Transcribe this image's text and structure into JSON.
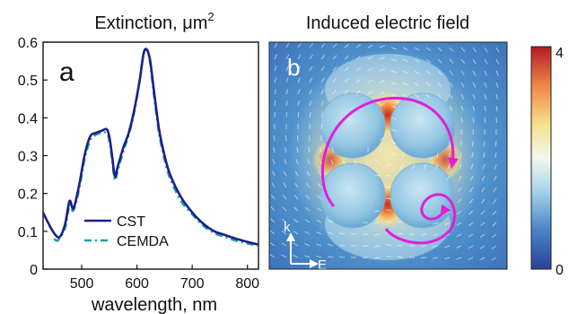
{
  "panel_a": {
    "title": "Extinction, μm",
    "title_sup": "2",
    "label": "a",
    "xlabel": "wavelength, nm",
    "y_ticks": [
      "0",
      "0.1",
      "0.2",
      "0.3",
      "0.4",
      "0.5",
      "0.6"
    ],
    "x_ticks": [
      "500",
      "600",
      "700",
      "800"
    ],
    "legend": [
      "CST",
      "CEMDA"
    ]
  },
  "panel_b": {
    "title": "Induced electric field",
    "label": "b",
    "axis_k": "k",
    "axis_e": "E",
    "colorbar_max": "4",
    "colorbar_min": "0"
  },
  "colors": {
    "cst": "#1b1f8a",
    "cemda": "#1aa3a3",
    "arrow_magenta": "#e020d8",
    "field_arrow": "#8b0d0d"
  },
  "chart_data": [
    {
      "type": "line",
      "title": "Extinction, μm²",
      "xlabel": "wavelength, nm",
      "ylabel": "",
      "xlim": [
        430,
        820
      ],
      "ylim": [
        0,
        0.6
      ],
      "x_ticks": [
        500,
        600,
        700,
        800
      ],
      "y_ticks": [
        0,
        0.1,
        0.2,
        0.3,
        0.4,
        0.5,
        0.6
      ],
      "legend_position": "lower-center",
      "series": [
        {
          "name": "CST",
          "x": [
            430,
            440,
            450,
            460,
            470,
            478,
            485,
            495,
            505,
            515,
            525,
            535,
            545,
            550,
            555,
            560,
            565,
            575,
            585,
            595,
            605,
            612,
            618,
            624,
            630,
            640,
            650,
            660,
            680,
            700,
            720,
            740,
            760,
            780,
            800,
            820
          ],
          "y": [
            0.15,
            0.12,
            0.095,
            0.085,
            0.12,
            0.18,
            0.16,
            0.22,
            0.3,
            0.35,
            0.36,
            0.365,
            0.37,
            0.35,
            0.3,
            0.245,
            0.27,
            0.32,
            0.36,
            0.42,
            0.5,
            0.57,
            0.58,
            0.55,
            0.48,
            0.37,
            0.3,
            0.25,
            0.19,
            0.15,
            0.12,
            0.1,
            0.09,
            0.08,
            0.072,
            0.065
          ]
        },
        {
          "name": "CEMDA",
          "x": [
            450,
            455,
            460,
            470,
            478,
            485,
            495,
            505,
            515,
            525,
            535,
            545,
            550,
            555,
            560,
            565,
            575,
            585,
            595,
            605,
            612,
            618,
            624,
            630,
            640,
            650,
            660,
            680,
            700,
            720,
            740,
            760,
            780,
            800,
            820
          ],
          "y": [
            0.08,
            0.075,
            0.082,
            0.11,
            0.17,
            0.155,
            0.21,
            0.29,
            0.34,
            0.355,
            0.36,
            0.36,
            0.34,
            0.29,
            0.235,
            0.26,
            0.31,
            0.355,
            0.415,
            0.5,
            0.57,
            0.58,
            0.545,
            0.47,
            0.36,
            0.29,
            0.24,
            0.18,
            0.145,
            0.115,
            0.095,
            0.085,
            0.075,
            0.068,
            0.062
          ]
        }
      ]
    },
    {
      "type": "heatmap",
      "title": "Induced electric field",
      "colorbar_range": [
        0,
        4
      ]
    }
  ]
}
